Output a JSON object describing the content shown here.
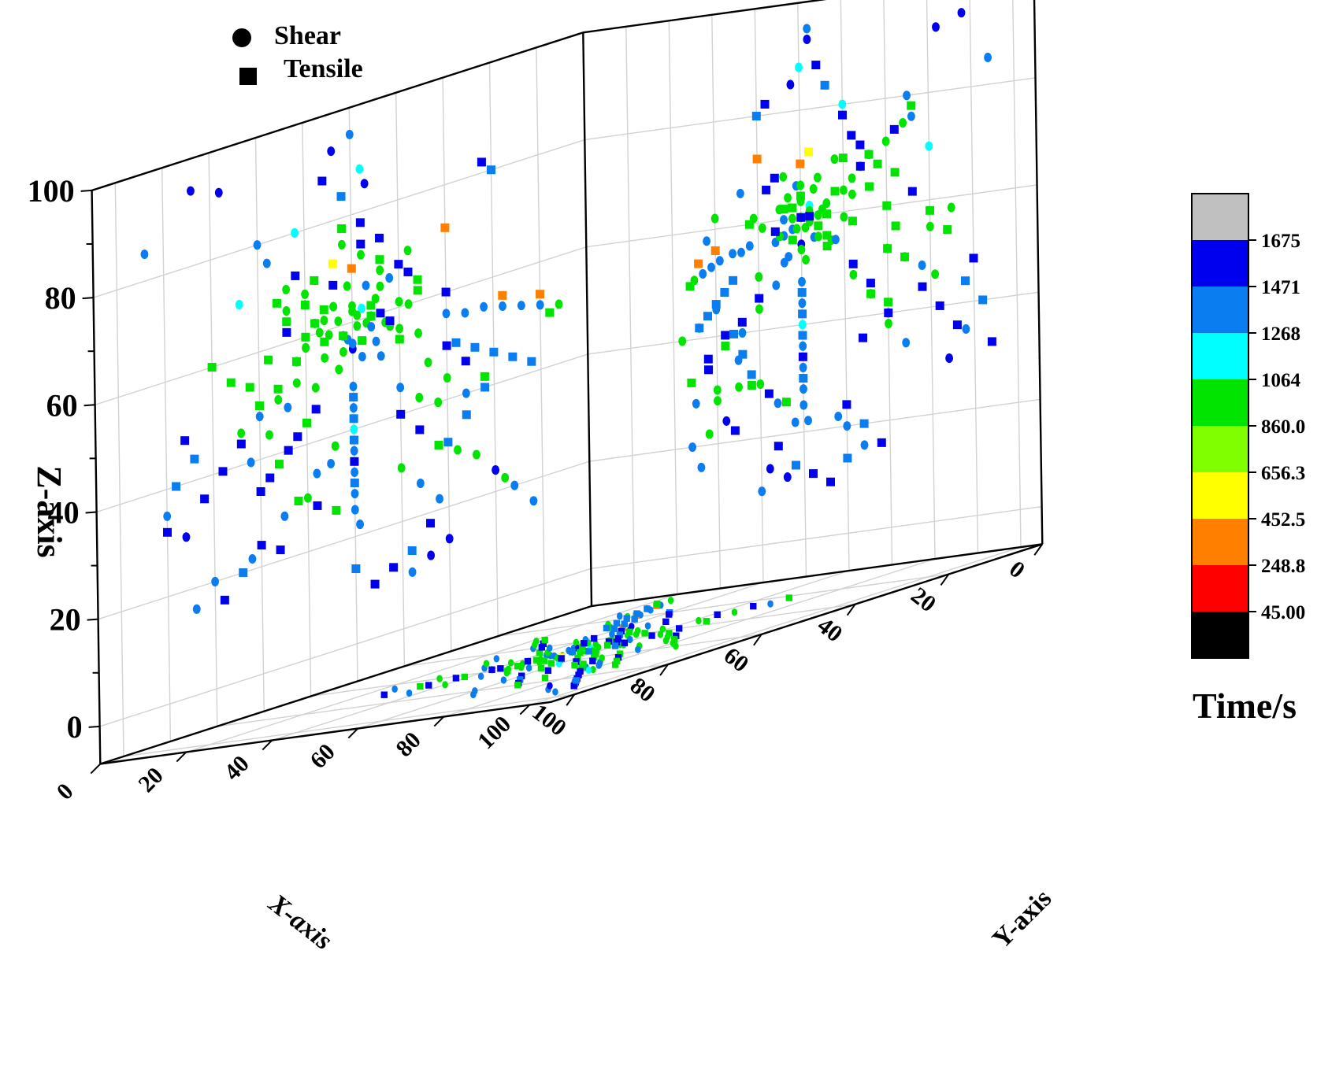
{
  "chart_data": {
    "type": "scatter",
    "dimension": "3d",
    "title": "",
    "xlabel": "X-axis",
    "ylabel": "Y-axis",
    "zlabel": "Z-axis",
    "xlim": [
      0,
      100
    ],
    "ylim": [
      0,
      100
    ],
    "zlim": [
      0,
      100
    ],
    "x_ticks": [
      "0",
      "20",
      "40",
      "60",
      "80",
      "100"
    ],
    "y_ticks": [
      "0",
      "20",
      "40",
      "60",
      "80",
      "100"
    ],
    "z_ticks": [
      "0",
      "20",
      "40",
      "60",
      "80",
      "100"
    ],
    "grid": true,
    "projections": [
      "xz-wall",
      "yz-wall",
      "xy-floor"
    ],
    "legend": {
      "placement": "top-left",
      "entries": [
        {
          "label": "Shear",
          "marker": "circle"
        },
        {
          "label": "Tensile",
          "marker": "square"
        }
      ]
    },
    "colorbar": {
      "title": "Time/s",
      "placement": "right",
      "tick_labels": [
        "1675",
        "1471",
        "1268",
        "1064",
        "860.0",
        "656.3",
        "452.5",
        "248.8",
        "45.00"
      ],
      "band_colors": [
        "#c0c0c0",
        "#0000ee",
        "#0a7ef0",
        "#00ffff",
        "#00e400",
        "#80ff00",
        "#ffff00",
        "#ff8000",
        "#ff0000",
        "#000000"
      ]
    },
    "series": [
      {
        "name": "Shear",
        "marker": "circle",
        "points": [
          [
            50,
            50,
            55,
            1650
          ],
          [
            48,
            52,
            62,
            1250
          ],
          [
            52,
            48,
            58,
            1400
          ],
          [
            46,
            54,
            60,
            1000
          ],
          [
            54,
            47,
            64,
            950
          ],
          [
            47,
            49,
            66,
            1450
          ],
          [
            53,
            51,
            52,
            1000
          ],
          [
            51,
            46,
            57,
            1300
          ],
          [
            49,
            55,
            61,
            1000
          ],
          [
            45,
            50,
            63,
            950
          ],
          [
            55,
            52,
            59,
            1000
          ],
          [
            50,
            44,
            56,
            1450
          ],
          [
            44,
            53,
            65,
            1000
          ],
          [
            52,
            57,
            55,
            950
          ],
          [
            57,
            50,
            60,
            1000
          ],
          [
            48,
            47,
            53,
            1450
          ],
          [
            43,
            51,
            58,
            1000
          ],
          [
            56,
            45,
            62,
            950
          ],
          [
            51,
            54,
            67,
            1000
          ],
          [
            46,
            46,
            60,
            1450
          ],
          [
            40,
            52,
            61,
            1000
          ],
          [
            60,
            49,
            58,
            950
          ],
          [
            49,
            60,
            59,
            1000
          ],
          [
            45,
            58,
            55,
            1450
          ],
          [
            58,
            56,
            62,
            1000
          ],
          [
            42,
            45,
            57,
            950
          ],
          [
            54,
            60,
            64,
            1000
          ],
          [
            38,
            48,
            60,
            1000
          ],
          [
            62,
            53,
            56,
            1450
          ],
          [
            50,
            62,
            63,
            1000
          ],
          [
            47,
            41,
            59,
            950
          ],
          [
            53,
            39,
            61,
            1000
          ],
          [
            50,
            50,
            48,
            1450
          ],
          [
            50,
            50,
            44,
            1300
          ],
          [
            50,
            50,
            40,
            1250
          ],
          [
            50,
            50,
            36,
            1300
          ],
          [
            50,
            50,
            32,
            1450
          ],
          [
            50,
            50,
            28,
            1300
          ],
          [
            50,
            50,
            25,
            1450
          ],
          [
            49,
            51,
            22,
            1300
          ],
          [
            30,
            38,
            56,
            1300
          ],
          [
            26,
            36,
            55,
            1300
          ],
          [
            22,
            34,
            55,
            1300
          ],
          [
            18,
            31,
            54,
            1300
          ],
          [
            14,
            29,
            53,
            1300
          ],
          [
            10,
            27,
            52,
            1300
          ],
          [
            6,
            25,
            51,
            1000
          ],
          [
            62,
            70,
            52,
            1000
          ],
          [
            66,
            74,
            50,
            1000
          ],
          [
            70,
            78,
            48,
            1450
          ],
          [
            74,
            81,
            46,
            1000
          ],
          [
            56,
            80,
            55,
            950
          ],
          [
            60,
            85,
            58,
            1000
          ],
          [
            40,
            30,
            45,
            1450
          ],
          [
            36,
            26,
            42,
            1000
          ],
          [
            32,
            22,
            40,
            1000
          ],
          [
            44,
            64,
            68,
            1000
          ],
          [
            48,
            70,
            72,
            950
          ],
          [
            52,
            74,
            75,
            1000
          ],
          [
            42,
            36,
            66,
            1450
          ],
          [
            58,
            40,
            50,
            1000
          ],
          [
            64,
            44,
            48,
            1450
          ],
          [
            68,
            40,
            44,
            1000
          ],
          [
            72,
            36,
            40,
            1300
          ],
          [
            34,
            62,
            48,
            1000
          ],
          [
            30,
            66,
            44,
            1000
          ],
          [
            26,
            70,
            40,
            1450
          ],
          [
            60,
            62,
            66,
            1000
          ],
          [
            64,
            66,
            70,
            1000
          ],
          [
            38,
            58,
            70,
            950
          ],
          [
            55,
            35,
            35,
            1450
          ],
          [
            60,
            30,
            30,
            1000
          ],
          [
            65,
            25,
            28,
            1450
          ],
          [
            40,
            40,
            30,
            1000
          ],
          [
            36,
            44,
            26,
            1450
          ],
          [
            32,
            48,
            22,
            1300
          ],
          [
            50,
            30,
            62,
            1000
          ],
          [
            46,
            28,
            58,
            1450
          ],
          [
            54,
            70,
            38,
            1000
          ],
          [
            58,
            74,
            34,
            1450
          ],
          [
            50,
            52,
            95,
            1450
          ],
          [
            54,
            52,
            93,
            1650
          ],
          [
            48,
            50,
            88,
            1250
          ],
          [
            47,
            48,
            85,
            1650
          ],
          [
            62,
            60,
            80,
            1250
          ],
          [
            78,
            82,
            92,
            1650
          ],
          [
            84,
            88,
            94,
            1650
          ],
          [
            94,
            94,
            85,
            1300
          ],
          [
            90,
            88,
            35,
            1300
          ],
          [
            86,
            84,
            30,
            1650
          ],
          [
            70,
            75,
            80,
            1450
          ],
          [
            68,
            76,
            76,
            1300
          ],
          [
            74,
            80,
            70,
            1250
          ],
          [
            28,
            35,
            30,
            1000
          ],
          [
            24,
            30,
            28,
            1000
          ],
          [
            20,
            32,
            24,
            1650
          ],
          [
            18,
            28,
            22,
            1000
          ],
          [
            16,
            24,
            20,
            1450
          ],
          [
            12,
            26,
            16,
            1300
          ],
          [
            30,
            42,
            14,
            1650
          ],
          [
            34,
            46,
            12,
            1650
          ],
          [
            38,
            40,
            10,
            1300
          ],
          [
            80,
            60,
            20,
            1450
          ],
          [
            84,
            64,
            16,
            1450
          ],
          [
            72,
            58,
            22,
            1300
          ],
          [
            64,
            50,
            66,
            1000
          ],
          [
            60,
            46,
            68,
            1000
          ],
          [
            40,
            54,
            56,
            1000
          ],
          [
            36,
            50,
            54,
            1000
          ],
          [
            44,
            46,
            52,
            1450
          ]
        ]
      },
      {
        "name": "Tensile",
        "marker": "square",
        "points": [
          [
            50,
            50,
            70,
            450
          ],
          [
            54,
            52,
            72,
            650
          ],
          [
            30,
            40,
            72,
            450
          ],
          [
            18,
            30,
            56,
            450
          ],
          [
            10,
            26,
            54,
            450
          ],
          [
            50,
            50,
            46,
            1450
          ],
          [
            50,
            50,
            42,
            1300
          ],
          [
            50,
            50,
            38,
            1300
          ],
          [
            50,
            50,
            34,
            1650
          ],
          [
            50,
            50,
            30,
            1300
          ],
          [
            46,
            48,
            62,
            1000
          ],
          [
            52,
            54,
            58,
            1000
          ],
          [
            56,
            50,
            64,
            1000
          ],
          [
            44,
            52,
            60,
            1650
          ],
          [
            48,
            56,
            56,
            1000
          ],
          [
            58,
            46,
            62,
            1000
          ],
          [
            42,
            44,
            58,
            1650
          ],
          [
            60,
            56,
            60,
            1000
          ],
          [
            40,
            56,
            54,
            1000
          ],
          [
            54,
            44,
            68,
            1650
          ],
          [
            62,
            48,
            56,
            1000
          ],
          [
            36,
            48,
            62,
            1000
          ],
          [
            64,
            58,
            64,
            1000
          ],
          [
            38,
            42,
            66,
            1650
          ],
          [
            56,
            62,
            58,
            1000
          ],
          [
            46,
            38,
            60,
            1000
          ],
          [
            28,
            34,
            50,
            1300
          ],
          [
            24,
            32,
            48,
            1300
          ],
          [
            20,
            30,
            46,
            1300
          ],
          [
            16,
            28,
            44,
            1300
          ],
          [
            12,
            26,
            42,
            1300
          ],
          [
            8,
            24,
            50,
            1000
          ],
          [
            22,
            34,
            40,
            1300
          ],
          [
            26,
            36,
            36,
            1300
          ],
          [
            30,
            38,
            32,
            1300
          ],
          [
            66,
            70,
            52,
            1000
          ],
          [
            70,
            74,
            50,
            1000
          ],
          [
            74,
            78,
            44,
            1650
          ],
          [
            78,
            82,
            40,
            1650
          ],
          [
            82,
            86,
            36,
            1650
          ],
          [
            60,
            66,
            44,
            1000
          ],
          [
            64,
            70,
            40,
            1650
          ],
          [
            68,
            64,
            36,
            1650
          ],
          [
            58,
            40,
            46,
            1650
          ],
          [
            62,
            36,
            42,
            1650
          ],
          [
            66,
            32,
            38,
            1000
          ],
          [
            70,
            28,
            34,
            1650
          ],
          [
            40,
            32,
            40,
            1650
          ],
          [
            36,
            28,
            36,
            1650
          ],
          [
            32,
            24,
            32,
            1000
          ],
          [
            30,
            62,
            50,
            1650
          ],
          [
            26,
            66,
            46,
            1650
          ],
          [
            22,
            70,
            42,
            1000
          ],
          [
            44,
            66,
            70,
            1000
          ],
          [
            48,
            72,
            74,
            1650
          ],
          [
            52,
            76,
            78,
            1000
          ],
          [
            20,
            40,
            80,
            1300
          ],
          [
            22,
            42,
            82,
            1650
          ],
          [
            70,
            60,
            24,
            1650
          ],
          [
            74,
            64,
            20,
            1300
          ],
          [
            78,
            68,
            16,
            1650
          ],
          [
            34,
            44,
            18,
            1650
          ],
          [
            38,
            48,
            14,
            1300
          ],
          [
            42,
            52,
            12,
            1650
          ],
          [
            46,
            56,
            10,
            1650
          ],
          [
            50,
            60,
            14,
            1300
          ],
          [
            54,
            46,
            26,
            1000
          ],
          [
            58,
            42,
            28,
            1650
          ],
          [
            62,
            38,
            30,
            1000
          ],
          [
            66,
            34,
            22,
            1650
          ],
          [
            56,
            54,
            88,
            1650
          ],
          [
            52,
            56,
            84,
            1300
          ],
          [
            48,
            60,
            78,
            1650
          ],
          [
            44,
            62,
            74,
            1650
          ],
          [
            40,
            64,
            68,
            1650
          ],
          [
            36,
            66,
            64,
            1000
          ],
          [
            60,
            72,
            66,
            1000
          ],
          [
            64,
            76,
            62,
            1650
          ],
          [
            68,
            80,
            58,
            1000
          ],
          [
            72,
            84,
            54,
            1000
          ],
          [
            86,
            90,
            48,
            1650
          ],
          [
            88,
            92,
            40,
            1300
          ],
          [
            90,
            94,
            32,
            1650
          ],
          [
            84,
            88,
            44,
            1300
          ],
          [
            80,
            70,
            60,
            1000
          ],
          [
            76,
            72,
            56,
            1000
          ],
          [
            58,
            60,
            70,
            1000
          ],
          [
            62,
            64,
            72,
            1650
          ],
          [
            66,
            68,
            68,
            1000
          ],
          [
            30,
            50,
            60,
            1650
          ]
        ]
      }
    ]
  }
}
